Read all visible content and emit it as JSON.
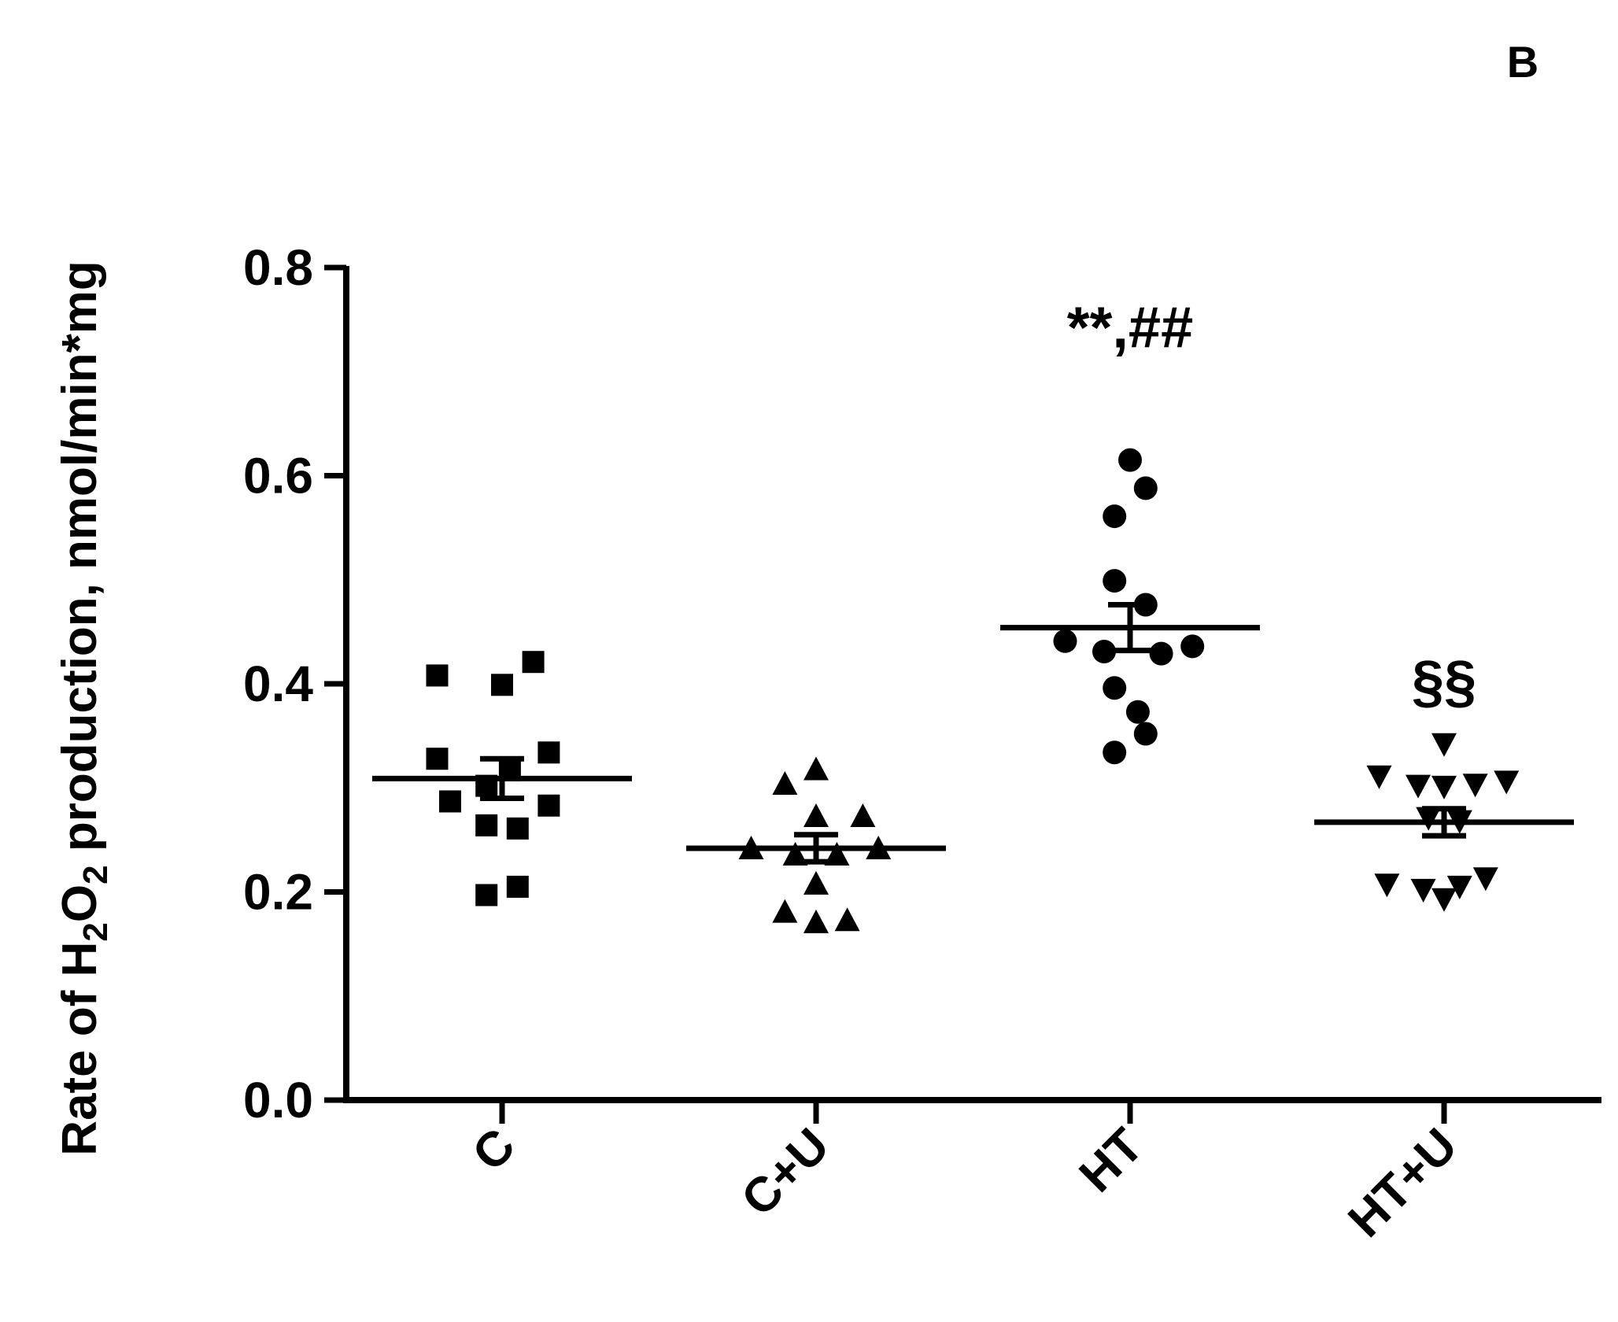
{
  "panel_label": "B",
  "chart_data": {
    "type": "scatter",
    "title": "",
    "xlabel": "",
    "ylabel": {
      "prefix": "Rate of H",
      "sub1": "2",
      "mid": "O",
      "sub2": "2",
      "suffix": " production, nmol/min*mg"
    },
    "ylim": [
      0,
      0.8
    ],
    "yticks": [
      "0.0",
      "0.2",
      "0.4",
      "0.6",
      "0.8"
    ],
    "grid": false,
    "legend": "none",
    "categories": [
      "C",
      "C+U",
      "HT",
      "HT+U"
    ],
    "series": [
      {
        "category": "C",
        "marker": "square",
        "points": [
          [
            -0.25,
            0.408
          ],
          [
            0.0,
            0.399
          ],
          [
            0.12,
            0.421
          ],
          [
            -0.25,
            0.328
          ],
          [
            0.18,
            0.334
          ],
          [
            0.03,
            0.317
          ],
          [
            -0.2,
            0.287
          ],
          [
            -0.06,
            0.302
          ],
          [
            0.18,
            0.283
          ],
          [
            -0.06,
            0.264
          ],
          [
            0.06,
            0.261
          ],
          [
            -0.06,
            0.197
          ],
          [
            0.06,
            0.205
          ]
        ],
        "mean": 0.309,
        "sem": 0.019
      },
      {
        "category": "C+U",
        "marker": "triangle-up",
        "points": [
          [
            -0.12,
            0.304
          ],
          [
            0.0,
            0.318
          ],
          [
            0.0,
            0.273
          ],
          [
            0.18,
            0.273
          ],
          [
            -0.25,
            0.242
          ],
          [
            0.24,
            0.242
          ],
          [
            -0.08,
            0.236
          ],
          [
            0.08,
            0.236
          ],
          [
            0.0,
            0.208
          ],
          [
            -0.12,
            0.181
          ],
          [
            0.12,
            0.173
          ],
          [
            0.0,
            0.171
          ]
        ],
        "mean": 0.242,
        "sem": 0.013
      },
      {
        "category": "HT",
        "marker": "circle",
        "points": [
          [
            0.0,
            0.615
          ],
          [
            0.06,
            0.588
          ],
          [
            -0.06,
            0.561
          ],
          [
            -0.06,
            0.499
          ],
          [
            0.06,
            0.476
          ],
          [
            -0.25,
            0.441
          ],
          [
            0.24,
            0.436
          ],
          [
            -0.1,
            0.431
          ],
          [
            0.12,
            0.429
          ],
          [
            -0.06,
            0.396
          ],
          [
            0.03,
            0.373
          ],
          [
            0.06,
            0.352
          ],
          [
            -0.06,
            0.334
          ]
        ],
        "mean": 0.454,
        "sem": 0.022
      },
      {
        "category": "HT+U",
        "marker": "triangle-down",
        "points": [
          [
            0.0,
            0.342
          ],
          [
            -0.25,
            0.311
          ],
          [
            0.24,
            0.306
          ],
          [
            -0.1,
            0.302
          ],
          [
            0.0,
            0.301
          ],
          [
            0.12,
            0.303
          ],
          [
            -0.06,
            0.271
          ],
          [
            0.06,
            0.268
          ],
          [
            -0.22,
            0.207
          ],
          [
            0.16,
            0.213
          ],
          [
            -0.08,
            0.202
          ],
          [
            0.06,
            0.205
          ],
          [
            0.0,
            0.193
          ]
        ],
        "mean": 0.267,
        "sem": 0.013
      }
    ],
    "annotations": [
      {
        "category": "HT",
        "text": "**,##",
        "y": 0.74
      },
      {
        "category": "HT+U",
        "text": "§§",
        "y": 0.4
      }
    ]
  }
}
